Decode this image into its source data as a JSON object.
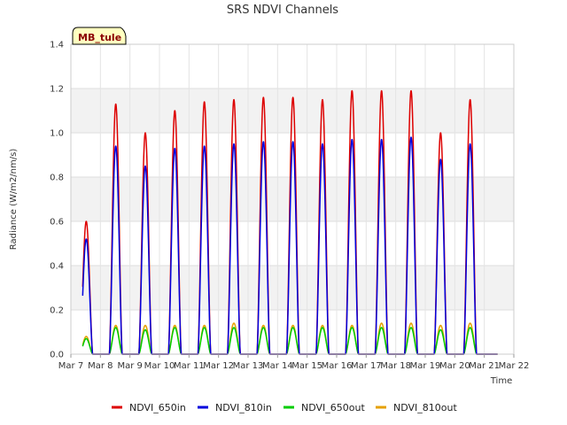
{
  "chart_data": {
    "type": "line",
    "title": "SRS NDVI Channels",
    "site_label": "MB_tule",
    "xlabel": "Time",
    "ylabel": "Radiance (W/m2/nm/s)",
    "ylim": [
      0,
      1.4
    ],
    "yticks": [
      0.0,
      0.2,
      0.4,
      0.6,
      0.8,
      1.0,
      1.2,
      1.4
    ],
    "ytick_labels": [
      "0.0",
      "0.2",
      "0.4",
      "0.6",
      "0.8",
      "1.0",
      "1.2",
      "1.4"
    ],
    "xlim_days": [
      7,
      22
    ],
    "xtick_labels": [
      "Mar 7",
      "Mar 8",
      "Mar 9",
      "Mar 10",
      "Mar 11",
      "Mar 12",
      "Mar 13",
      "Mar 14",
      "Mar 15",
      "Mar 16",
      "Mar 17",
      "Mar 18",
      "Mar 19",
      "Mar 20",
      "Mar 21",
      "Mar 22"
    ],
    "grid": true,
    "legend_position": "bottom",
    "data_start_day": 7.4,
    "data_end_day": 21.45,
    "series": [
      {
        "name": "NDVI_650in",
        "color": "#dd0000",
        "daily_peaks": [
          {
            "day": 7,
            "peak": 0.6
          },
          {
            "day": 8,
            "peak": 1.13
          },
          {
            "day": 9,
            "peak": 1.0
          },
          {
            "day": 10,
            "peak": 1.1
          },
          {
            "day": 11,
            "peak": 1.14
          },
          {
            "day": 12,
            "peak": 1.15
          },
          {
            "day": 13,
            "peak": 1.16
          },
          {
            "day": 14,
            "peak": 1.16
          },
          {
            "day": 15,
            "peak": 1.15
          },
          {
            "day": 16,
            "peak": 1.19
          },
          {
            "day": 17,
            "peak": 1.19
          },
          {
            "day": 18,
            "peak": 1.19
          },
          {
            "day": 19,
            "peak": 1.0
          },
          {
            "day": 20,
            "peak": 1.15
          }
        ]
      },
      {
        "name": "NDVI_810in",
        "color": "#0000dd",
        "daily_peaks": [
          {
            "day": 7,
            "peak": 0.52
          },
          {
            "day": 8,
            "peak": 0.94
          },
          {
            "day": 9,
            "peak": 0.85
          },
          {
            "day": 10,
            "peak": 0.93
          },
          {
            "day": 11,
            "peak": 0.94
          },
          {
            "day": 12,
            "peak": 0.95
          },
          {
            "day": 13,
            "peak": 0.96
          },
          {
            "day": 14,
            "peak": 0.96
          },
          {
            "day": 15,
            "peak": 0.95
          },
          {
            "day": 16,
            "peak": 0.97
          },
          {
            "day": 17,
            "peak": 0.97
          },
          {
            "day": 18,
            "peak": 0.98
          },
          {
            "day": 19,
            "peak": 0.88
          },
          {
            "day": 20,
            "peak": 0.95
          }
        ]
      },
      {
        "name": "NDVI_650out",
        "color": "#00cc00",
        "daily_peaks": [
          {
            "day": 7,
            "peak": 0.07
          },
          {
            "day": 8,
            "peak": 0.12
          },
          {
            "day": 9,
            "peak": 0.11
          },
          {
            "day": 10,
            "peak": 0.12
          },
          {
            "day": 11,
            "peak": 0.12
          },
          {
            "day": 12,
            "peak": 0.12
          },
          {
            "day": 13,
            "peak": 0.12
          },
          {
            "day": 14,
            "peak": 0.12
          },
          {
            "day": 15,
            "peak": 0.12
          },
          {
            "day": 16,
            "peak": 0.12
          },
          {
            "day": 17,
            "peak": 0.12
          },
          {
            "day": 18,
            "peak": 0.12
          },
          {
            "day": 19,
            "peak": 0.11
          },
          {
            "day": 20,
            "peak": 0.12
          }
        ]
      },
      {
        "name": "NDVI_810out",
        "color": "#e6a000",
        "daily_peaks": [
          {
            "day": 7,
            "peak": 0.08
          },
          {
            "day": 8,
            "peak": 0.13
          },
          {
            "day": 9,
            "peak": 0.13
          },
          {
            "day": 10,
            "peak": 0.13
          },
          {
            "day": 11,
            "peak": 0.13
          },
          {
            "day": 12,
            "peak": 0.14
          },
          {
            "day": 13,
            "peak": 0.13
          },
          {
            "day": 14,
            "peak": 0.13
          },
          {
            "day": 15,
            "peak": 0.13
          },
          {
            "day": 16,
            "peak": 0.13
          },
          {
            "day": 17,
            "peak": 0.14
          },
          {
            "day": 18,
            "peak": 0.14
          },
          {
            "day": 19,
            "peak": 0.13
          },
          {
            "day": 20,
            "peak": 0.14
          }
        ]
      }
    ]
  }
}
